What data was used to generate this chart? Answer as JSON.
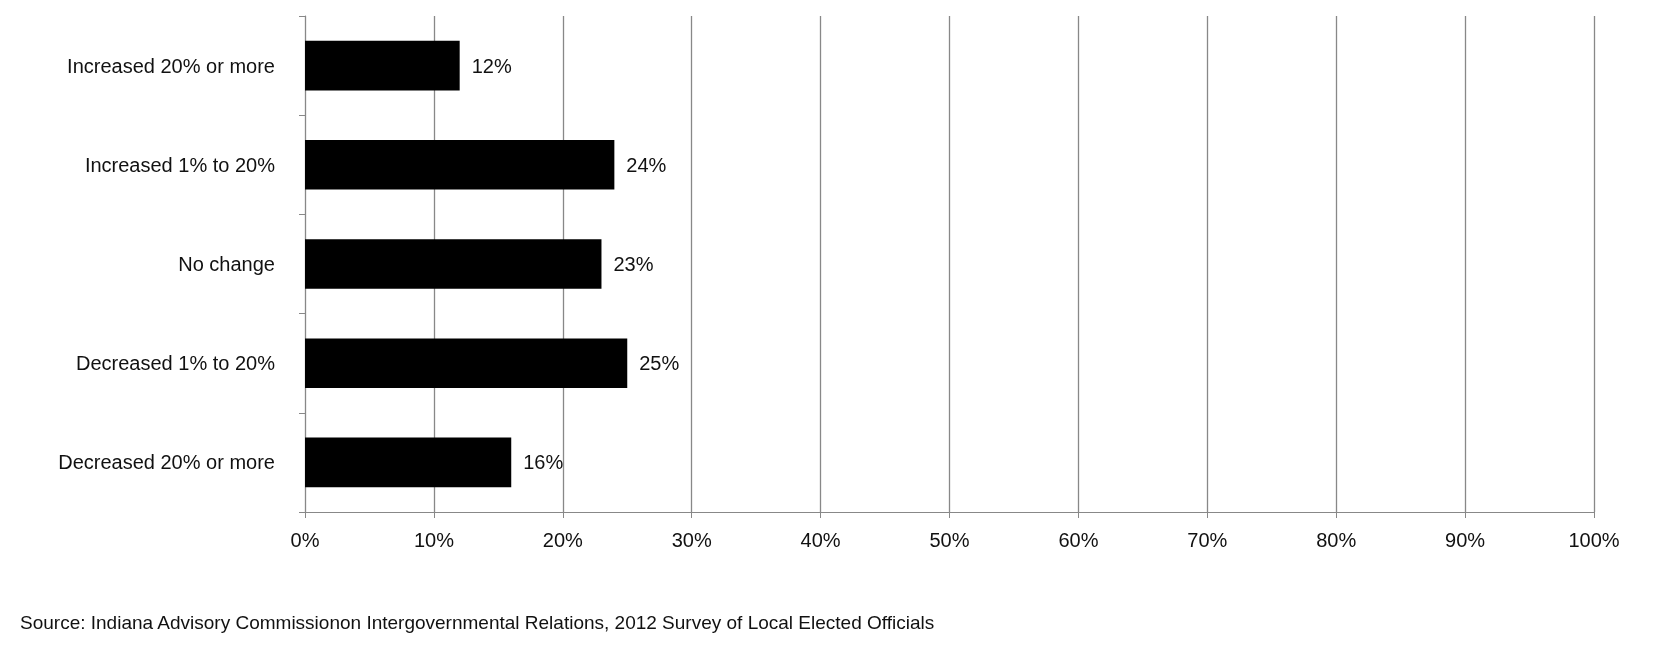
{
  "chart_data": {
    "type": "bar",
    "orientation": "horizontal",
    "categories": [
      "Increased 20% or more",
      "Increased 1% to 20%",
      "No change",
      "Decreased 1% to 20%",
      "Decreased 20% or more"
    ],
    "values": [
      12,
      24,
      23,
      25,
      16
    ],
    "color": "#000000",
    "value_labels": [
      "12%",
      "24%",
      "23%",
      "25%",
      "16%"
    ],
    "xlim": [
      0,
      100
    ],
    "xticks": [
      {
        "value": 0,
        "label": "0%"
      },
      {
        "value": 10,
        "label": "10%"
      },
      {
        "value": 20,
        "label": "20%"
      },
      {
        "value": 30,
        "label": "30%"
      },
      {
        "value": 40,
        "label": "40%"
      },
      {
        "value": 50,
        "label": "50%"
      },
      {
        "value": 60,
        "label": "60%"
      },
      {
        "value": 70,
        "label": "70%"
      },
      {
        "value": 80,
        "label": "80%"
      },
      {
        "value": 90,
        "label": "90%"
      },
      {
        "value": 100,
        "label": "100%"
      }
    ],
    "grid": "x",
    "annotations": [
      "Source: Indiana Advisory Commissionon Intergovernmental Relations, 2012 Survey of Local Elected Officials"
    ]
  }
}
